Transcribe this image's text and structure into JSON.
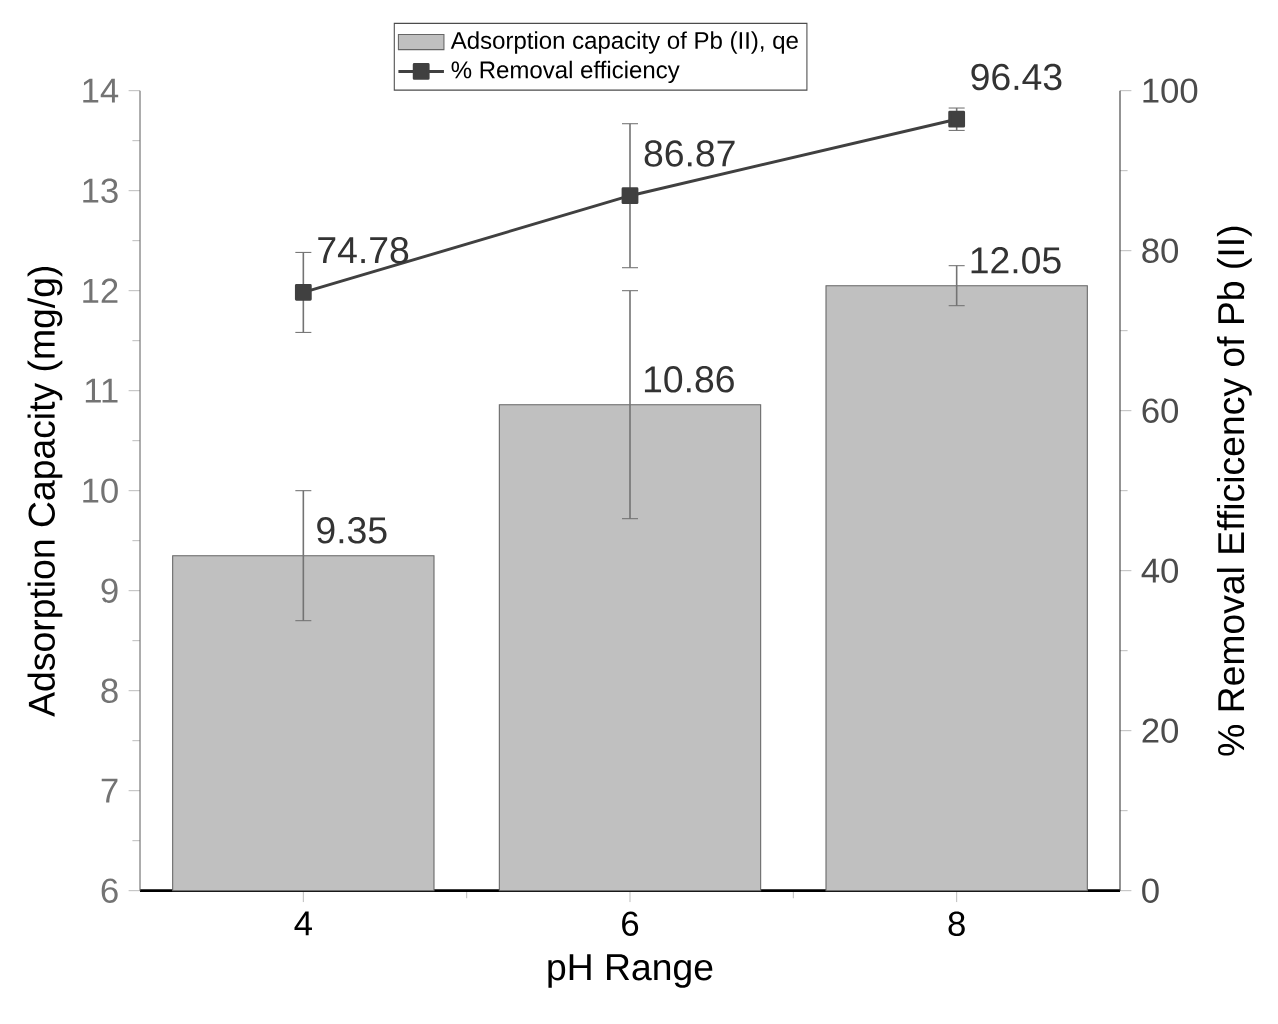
{
  "chart_data": {
    "type": "bar",
    "xlabel": "pH Range",
    "ylabel": "Adsorption Capacity (mg/g)",
    "y2label": "% Removal Efficicency of Pb (II)",
    "categories": [
      "4",
      "6",
      "8"
    ],
    "series": [
      {
        "name": "Adsorption capacity of Pb (II), qe",
        "color": "#c0c0c0",
        "values": [
          9.35,
          10.86,
          12.05
        ],
        "errors": [
          0.65,
          1.14,
          0.2
        ]
      },
      {
        "name": "% Removal efficiency",
        "type": "line",
        "axis": "y2",
        "color": "#404040",
        "values": [
          74.78,
          86.87,
          96.43
        ],
        "errors": [
          5,
          9,
          1.4
        ]
      }
    ],
    "ylim": [
      6,
      14
    ],
    "yticks": [
      6,
      7,
      8,
      9,
      10,
      11,
      12,
      13,
      14
    ],
    "y2lim": [
      0,
      100
    ],
    "y2ticks": [
      0,
      20,
      40,
      60,
      80,
      100
    ],
    "data_labels": true,
    "legend": "top",
    "marker": "square"
  }
}
